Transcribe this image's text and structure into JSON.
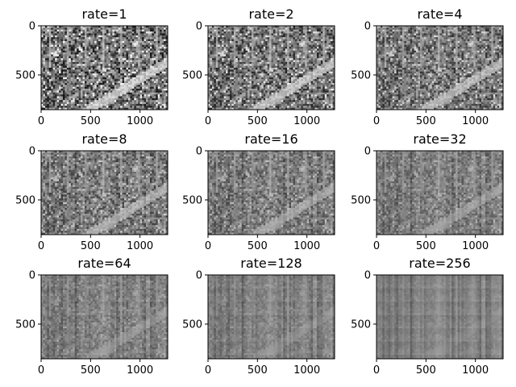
{
  "chart_data": {
    "type": "image-grid",
    "colormap": "gray",
    "image_extent": {
      "width": 1280,
      "height": 853
    },
    "xticks": [
      0,
      500,
      1000
    ],
    "yticks": [
      0,
      500
    ],
    "panels": [
      {
        "title": "rate=1",
        "rate": 1
      },
      {
        "title": "rate=2",
        "rate": 2
      },
      {
        "title": "rate=4",
        "rate": 4
      },
      {
        "title": "rate=8",
        "rate": 8
      },
      {
        "title": "rate=16",
        "rate": 16
      },
      {
        "title": "rate=32",
        "rate": 32
      },
      {
        "title": "rate=64",
        "rate": 64
      },
      {
        "title": "rate=128",
        "rate": 128
      },
      {
        "title": "rate=256",
        "rate": 256
      }
    ]
  }
}
